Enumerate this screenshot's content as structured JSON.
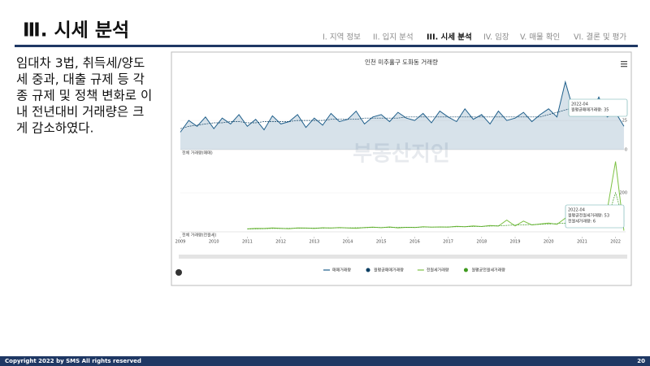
{
  "header": {
    "title": "Ⅲ. 시세 분석",
    "nav": [
      "I. 지역 정보",
      "II. 입지 분석",
      "III. 시세 분석",
      "IV. 임장",
      "V. 매물 확인",
      "VI. 결론 및 평가"
    ]
  },
  "body": {
    "lines": [
      "임대차 3법, 취득세/양도",
      "세 중과, 대출 규제 등 각",
      "종 규제 및 정책 변화로 이",
      "내 전년대비 거래량은 크",
      "게 감소하였다."
    ]
  },
  "chart": {
    "title": "인천 미추홀구 도화동 거래량",
    "watermark": "부동산지인"
  },
  "chart_data": [
    {
      "type": "line",
      "label": "전체 거래량(매매)",
      "area": true,
      "x": [
        2009,
        2009.25,
        2009.5,
        2009.75,
        2010,
        2010.25,
        2010.5,
        2010.75,
        2011,
        2011.25,
        2011.5,
        2011.75,
        2012,
        2012.25,
        2012.5,
        2012.75,
        2013,
        2013.25,
        2013.5,
        2013.75,
        2014,
        2014.25,
        2014.5,
        2014.75,
        2015,
        2015.25,
        2015.5,
        2015.75,
        2016,
        2016.25,
        2016.5,
        2016.75,
        2017,
        2017.25,
        2017.5,
        2017.75,
        2018,
        2018.25,
        2018.5,
        2018.75,
        2019,
        2019.25,
        2019.5,
        2019.75,
        2020,
        2020.25,
        2020.5,
        2020.75,
        2021,
        2021.25,
        2021.5,
        2021.75,
        2022,
        2022.25
      ],
      "series": [
        {
          "name": "매매거래량",
          "color": "#1f5f8b",
          "values": [
            15,
            25,
            20,
            28,
            18,
            27,
            22,
            30,
            20,
            26,
            17,
            29,
            22,
            24,
            30,
            19,
            27,
            21,
            31,
            24,
            26,
            33,
            22,
            28,
            30,
            24,
            32,
            27,
            25,
            31,
            23,
            33,
            28,
            24,
            35,
            26,
            30,
            22,
            33,
            25,
            27,
            32,
            24,
            30,
            35,
            28,
            58,
            33,
            40,
            30,
            45,
            28,
            32,
            20
          ]
        },
        {
          "name": "월평균매매거래량",
          "color": "#0b3f63",
          "values": [
            18,
            20,
            21,
            22,
            23,
            23,
            24,
            24,
            23,
            23,
            24,
            24,
            24,
            24,
            25,
            25,
            25,
            25,
            26,
            26,
            26,
            26,
            27,
            27,
            27,
            27,
            27,
            28,
            28,
            28,
            28,
            28,
            28,
            28,
            28,
            28,
            28,
            28,
            28,
            28,
            28,
            28,
            28,
            28,
            30,
            32,
            34,
            36,
            37,
            37,
            36,
            36,
            35,
            35
          ]
        }
      ],
      "xlim": [
        2009,
        2022.3
      ],
      "ylim": [
        0,
        62
      ],
      "yticks": [
        0,
        25
      ],
      "annotations": [
        "2022-04",
        "월평균매매거래량: 35"
      ]
    },
    {
      "type": "line",
      "label": "전체 거래량(전월세)",
      "x": [
        2009,
        2009.25,
        2009.5,
        2009.75,
        2010,
        2010.25,
        2010.5,
        2010.75,
        2011,
        2011.25,
        2011.5,
        2011.75,
        2012,
        2012.25,
        2012.5,
        2012.75,
        2013,
        2013.25,
        2013.5,
        2013.75,
        2014,
        2014.25,
        2014.5,
        2014.75,
        2015,
        2015.25,
        2015.5,
        2015.75,
        2016,
        2016.25,
        2016.5,
        2016.75,
        2017,
        2017.25,
        2017.5,
        2017.75,
        2018,
        2018.25,
        2018.5,
        2018.75,
        2019,
        2019.25,
        2019.5,
        2019.75,
        2020,
        2020.25,
        2020.5,
        2020.75,
        2021,
        2021.25,
        2021.5,
        2021.75,
        2022,
        2022.25
      ],
      "series": [
        {
          "name": "전월세거래량",
          "color": "#7cc142",
          "values": [
            null,
            null,
            null,
            null,
            null,
            null,
            null,
            null,
            15,
            18,
            17,
            20,
            18,
            16,
            20,
            19,
            17,
            21,
            19,
            22,
            20,
            18,
            22,
            24,
            21,
            25,
            20,
            23,
            22,
            26,
            24,
            25,
            24,
            28,
            26,
            30,
            27,
            32,
            29,
            60,
            30,
            55,
            35,
            40,
            45,
            38,
            70,
            42,
            50,
            60,
            45,
            110,
            360,
            6
          ]
        },
        {
          "name": "월평균전월세거래량",
          "color": "#3f9a1f",
          "values": [
            null,
            null,
            null,
            null,
            null,
            null,
            null,
            null,
            14,
            15,
            16,
            17,
            17,
            18,
            18,
            18,
            19,
            19,
            20,
            20,
            20,
            21,
            21,
            22,
            22,
            22,
            23,
            23,
            23,
            24,
            24,
            24,
            25,
            26,
            26,
            27,
            28,
            29,
            31,
            33,
            35,
            36,
            37,
            38,
            40,
            42,
            44,
            45,
            48,
            50,
            53,
            60,
            200,
            53
          ]
        }
      ],
      "xlim": [
        2009,
        2022.3
      ],
      "ylim": [
        0,
        375
      ],
      "yticks": [
        200
      ],
      "xticks": [
        2009,
        2010,
        2011,
        2012,
        2013,
        2014,
        2015,
        2016,
        2017,
        2018,
        2019,
        2020,
        2021,
        2022
      ],
      "annotations": [
        "2022-04",
        "월평균전월세거래량: 53",
        "전월세거래량: 6"
      ]
    }
  ],
  "footer": {
    "copyright": "Copyright 2022 by SMS All rights reserved",
    "page": "20"
  }
}
